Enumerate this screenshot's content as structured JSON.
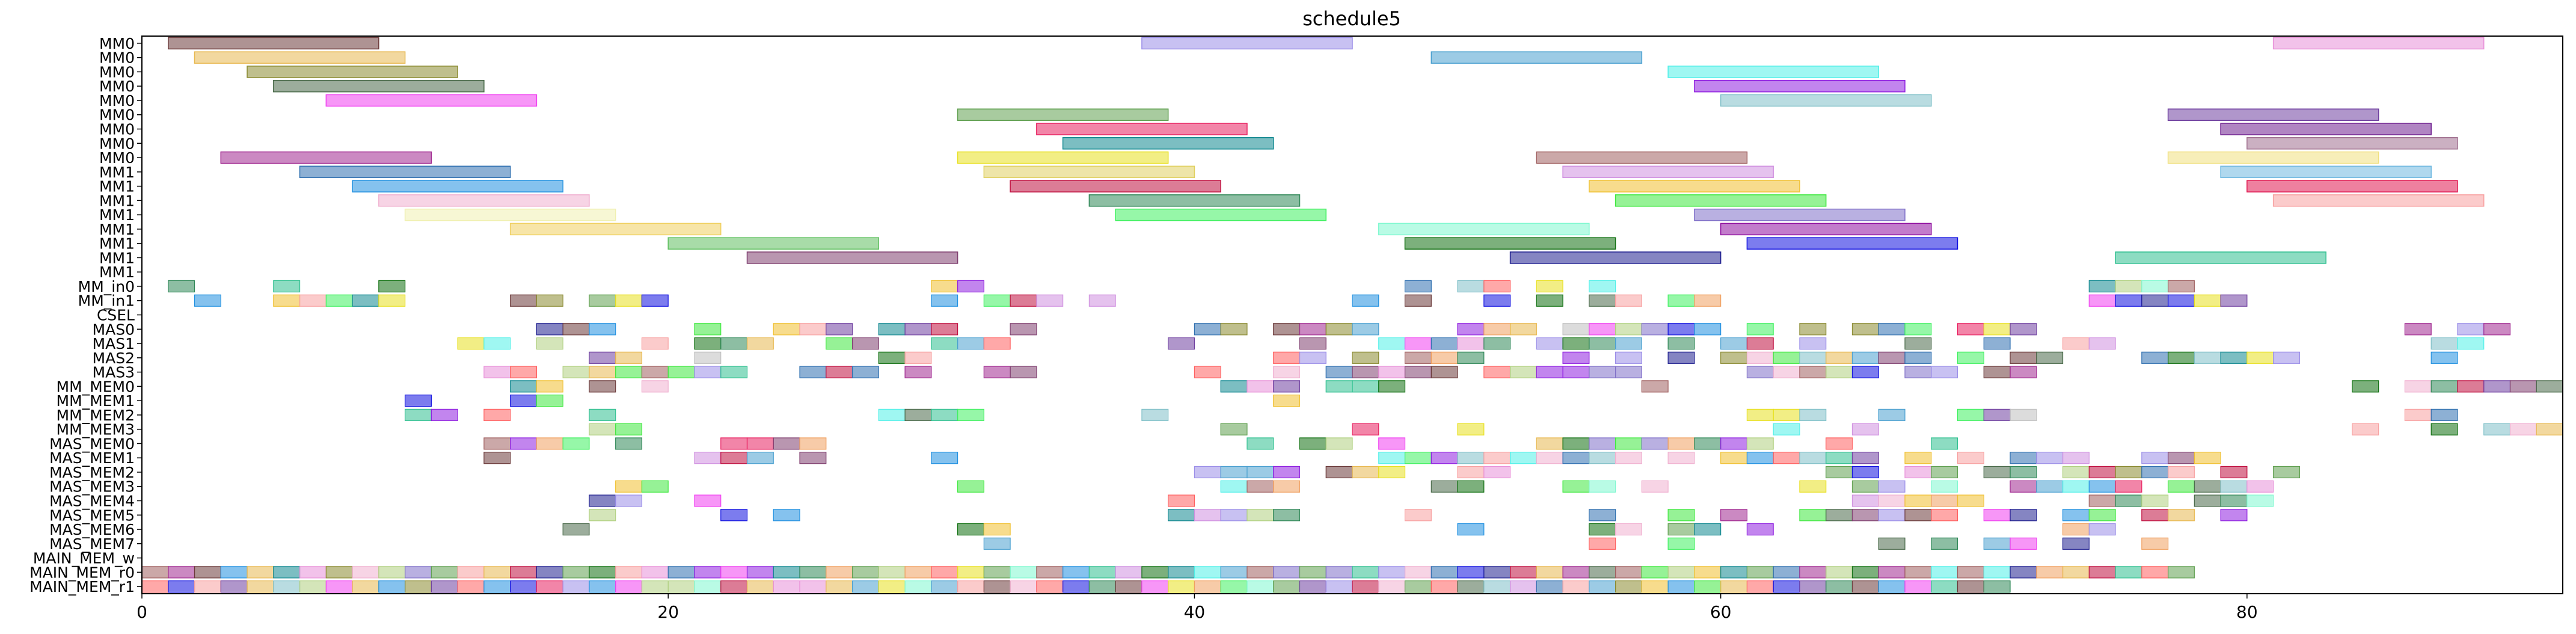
{
  "chart_data": {
    "type": "gantt",
    "title": "schedule5",
    "xlim": [
      0,
      92
    ],
    "xticks": [
      0,
      20,
      40,
      60,
      80
    ],
    "grid": false,
    "rows": [
      "MM0",
      "MM0",
      "MM0",
      "MM0",
      "MM0",
      "MM0",
      "MM0",
      "MM0",
      "MM0",
      "MM1",
      "MM1",
      "MM1",
      "MM1",
      "MM1",
      "MM1",
      "MM1",
      "MM1",
      "MM_in0",
      "MM_in1",
      "CSEL",
      "MAS0",
      "MAS1",
      "MAS2",
      "MAS3",
      "MM_MEM0",
      "MM_MEM1",
      "MM_MEM2",
      "MM_MEM3",
      "MAS_MEM0",
      "MAS_MEM1",
      "MAS_MEM2",
      "MAS_MEM3",
      "MAS_MEM4",
      "MAS_MEM5",
      "MAS_MEM6",
      "MAS_MEM7",
      "MAIN_MEM_w",
      "MAIN_MEM_r0",
      "MAIN_MEM_r1"
    ],
    "bars": [
      {
        "row": 0,
        "start": 1,
        "end": 9,
        "color": "#6b3a3a"
      },
      {
        "row": 0,
        "start": 38,
        "end": 46,
        "color": "#9b8ee8"
      },
      {
        "row": 0,
        "start": 81,
        "end": 89,
        "color": "#e890d8"
      },
      {
        "row": 1,
        "start": 2,
        "end": 10,
        "color": "#e8b850"
      },
      {
        "row": 1,
        "start": 49,
        "end": 57,
        "color": "#4aa0d0"
      },
      {
        "row": 2,
        "start": 4,
        "end": 12,
        "color": "#8a8a30"
      },
      {
        "row": 2,
        "start": 58,
        "end": 66,
        "color": "#50f0e8"
      },
      {
        "row": 3,
        "start": 5,
        "end": 13,
        "color": "#4a6a4a"
      },
      {
        "row": 3,
        "start": 59,
        "end": 67,
        "color": "#9020e0"
      },
      {
        "row": 4,
        "start": 7,
        "end": 15,
        "color": "#f040f0"
      },
      {
        "row": 4,
        "start": 60,
        "end": 68,
        "color": "#80c0c8"
      },
      {
        "row": 5,
        "start": 31,
        "end": 39,
        "color": "#60a050"
      },
      {
        "row": 5,
        "start": 77,
        "end": 85,
        "color": "#7040a0"
      },
      {
        "row": 6,
        "start": 34,
        "end": 42,
        "color": "#e82060"
      },
      {
        "row": 6,
        "start": 79,
        "end": 87,
        "color": "#702090"
      },
      {
        "row": 7,
        "start": 35,
        "end": 43,
        "color": "#108890"
      },
      {
        "row": 7,
        "start": 80,
        "end": 88,
        "color": "#a07090"
      },
      {
        "row": 8,
        "start": 3,
        "end": 11,
        "color": "#a02890"
      },
      {
        "row": 8,
        "start": 31,
        "end": 39,
        "color": "#e8e020"
      },
      {
        "row": 8,
        "start": 53,
        "end": 61,
        "color": "#a06060"
      },
      {
        "row": 8,
        "start": 77,
        "end": 85,
        "color": "#f0e080"
      },
      {
        "row": 9,
        "start": 6,
        "end": 14,
        "color": "#3070b0"
      },
      {
        "row": 9,
        "start": 32,
        "end": 40,
        "color": "#e0d060"
      },
      {
        "row": 9,
        "start": 54,
        "end": 62,
        "color": "#d090e0"
      },
      {
        "row": 9,
        "start": 79,
        "end": 87,
        "color": "#70b8e0"
      },
      {
        "row": 10,
        "start": 8,
        "end": 16,
        "color": "#2090e0"
      },
      {
        "row": 10,
        "start": 33,
        "end": 41,
        "color": "#c01040"
      },
      {
        "row": 10,
        "start": 55,
        "end": 63,
        "color": "#f0c030"
      },
      {
        "row": 10,
        "start": 80,
        "end": 88,
        "color": "#e01850"
      },
      {
        "row": 11,
        "start": 9,
        "end": 17,
        "color": "#f0b0d0"
      },
      {
        "row": 11,
        "start": 36,
        "end": 44,
        "color": "#308858"
      },
      {
        "row": 11,
        "start": 56,
        "end": 64,
        "color": "#40e840"
      },
      {
        "row": 11,
        "start": 81,
        "end": 89,
        "color": "#f8a0a0"
      },
      {
        "row": 12,
        "start": 10,
        "end": 18,
        "color": "#f0f0b0"
      },
      {
        "row": 12,
        "start": 37,
        "end": 45,
        "color": "#40f060"
      },
      {
        "row": 12,
        "start": 59,
        "end": 67,
        "color": "#8070c8"
      },
      {
        "row": 13,
        "start": 14,
        "end": 22,
        "color": "#f0d060"
      },
      {
        "row": 13,
        "start": 47,
        "end": 55,
        "color": "#80f8d0"
      },
      {
        "row": 13,
        "start": 60,
        "end": 68,
        "color": "#9010a0"
      },
      {
        "row": 14,
        "start": 20,
        "end": 28,
        "color": "#60c060"
      },
      {
        "row": 14,
        "start": 48,
        "end": 56,
        "color": "#107010"
      },
      {
        "row": 14,
        "start": 61,
        "end": 69,
        "color": "#1010e0"
      },
      {
        "row": 15,
        "start": 23,
        "end": 31,
        "color": "#804070"
      },
      {
        "row": 15,
        "start": 52,
        "end": 60,
        "color": "#202090"
      },
      {
        "row": 15,
        "start": 75,
        "end": 83,
        "color": "#30c090"
      }
    ]
  }
}
